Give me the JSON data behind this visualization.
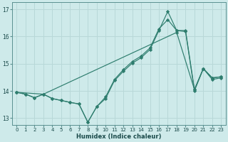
{
  "xlabel": "Humidex (Indice chaleur)",
  "background_color": "#ceeaea",
  "grid_color": "#b8d8d8",
  "line_color": "#2e7d6e",
  "xlim": [
    -0.5,
    23.5
  ],
  "ylim": [
    12.75,
    17.25
  ],
  "xticks": [
    0,
    1,
    2,
    3,
    4,
    5,
    6,
    7,
    8,
    9,
    10,
    11,
    12,
    13,
    14,
    15,
    16,
    17,
    18,
    19,
    20,
    21,
    22,
    23
  ],
  "yticks": [
    13,
    14,
    15,
    16,
    17
  ],
  "line1_x": [
    0,
    1,
    2,
    3,
    4,
    5,
    6,
    7,
    8,
    9,
    10,
    11,
    12,
    13,
    14,
    15,
    16,
    17,
    18,
    19,
    20,
    21,
    22,
    23
  ],
  "line1_y": [
    13.95,
    13.88,
    13.75,
    13.88,
    13.72,
    13.65,
    13.58,
    13.52,
    12.85,
    13.42,
    13.78,
    14.42,
    14.78,
    15.08,
    15.28,
    15.58,
    16.28,
    16.62,
    16.22,
    16.22,
    14.05,
    14.82,
    14.48,
    14.52
  ],
  "line2_x": [
    0,
    1,
    2,
    3,
    4,
    5,
    6,
    7,
    8,
    9,
    10,
    11,
    12,
    13,
    14,
    15,
    16,
    17,
    18,
    19,
    20,
    21,
    22,
    23
  ],
  "line2_y": [
    13.95,
    13.88,
    13.75,
    13.88,
    13.72,
    13.65,
    13.58,
    13.52,
    12.85,
    13.42,
    13.72,
    14.38,
    14.72,
    15.02,
    15.22,
    15.52,
    16.22,
    16.92,
    16.22,
    16.18,
    14.0,
    14.82,
    14.42,
    14.48
  ],
  "line3_x": [
    0,
    3,
    18,
    20,
    21,
    22,
    23
  ],
  "line3_y": [
    13.95,
    13.88,
    16.15,
    14.05,
    14.82,
    14.48,
    14.52
  ]
}
